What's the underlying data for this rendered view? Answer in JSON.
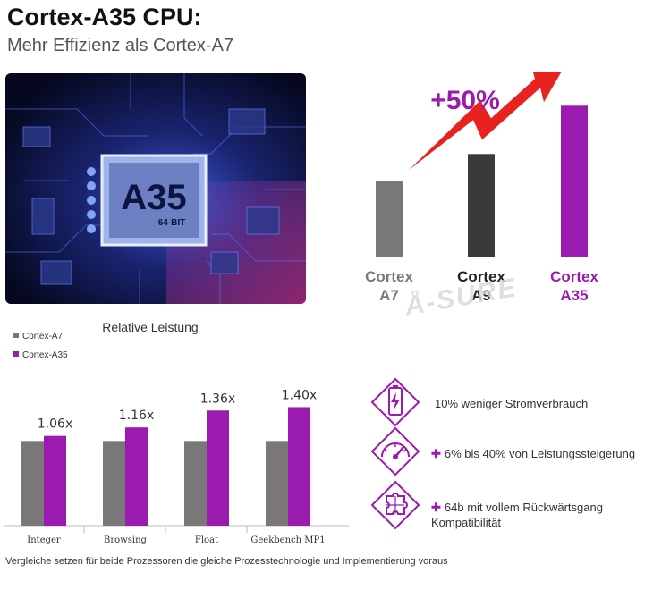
{
  "header": {
    "title": "Cortex-A35 CPU:",
    "subtitle": "Mehr Effizienz als Cortex-A7"
  },
  "chip_image": {
    "label": "A35",
    "sublabel": "64-BIT"
  },
  "watermark": "Å-SURE",
  "colors": {
    "purple": "#9b1ab0",
    "grey": "#7a7778",
    "dark": "#3a393b",
    "bright_purple": "#a020d8"
  },
  "chart_data": [
    {
      "type": "bar",
      "annotation": "+50%",
      "categories": [
        "Cortex A7",
        "Cortex A9",
        "Cortex A35"
      ],
      "category_lines": [
        [
          "Cortex",
          "A7"
        ],
        [
          "Cortex",
          "A9"
        ],
        [
          "Cortex",
          "A35"
        ]
      ],
      "values": [
        1.0,
        1.35,
        1.98
      ],
      "ylim": [
        0,
        2.1
      ],
      "colors": [
        "#7a7778",
        "#3a393b",
        "#9b1ab0"
      ],
      "label_colors": [
        "#7a7778",
        "#222222",
        "#9b1ab0"
      ]
    },
    {
      "type": "bar",
      "title": "Relative Leistung",
      "categories": [
        "Integer",
        "Browsing",
        "Float",
        "Geekbench MP1"
      ],
      "series": [
        {
          "name": "Cortex-A7",
          "values": [
            1.0,
            1.0,
            1.0,
            1.0
          ],
          "color": "#7a7778"
        },
        {
          "name": "Cortex-A35",
          "values": [
            1.06,
            1.16,
            1.36,
            1.4
          ],
          "color": "#9b1ab0"
        }
      ],
      "data_labels": [
        "1.06x",
        "1.16x",
        "1.36x",
        "1.40x"
      ],
      "ylim": [
        0,
        1.5
      ],
      "legend": "top-left"
    }
  ],
  "features": [
    {
      "icon": "battery-icon",
      "plus": "",
      "text": "10% weniger Stromverbrauch"
    },
    {
      "icon": "speedometer-icon",
      "plus": "✚",
      "text": "6% bis 40% von Leistungssteigerung"
    },
    {
      "icon": "puzzle-icon",
      "plus": "✚",
      "text": "64b mit vollem Rückwärtsgang Kompatibilität"
    }
  ],
  "footnote": "Vergleiche setzen für beide Prozessoren die gleiche Prozesstechnologie und Implementierung voraus"
}
